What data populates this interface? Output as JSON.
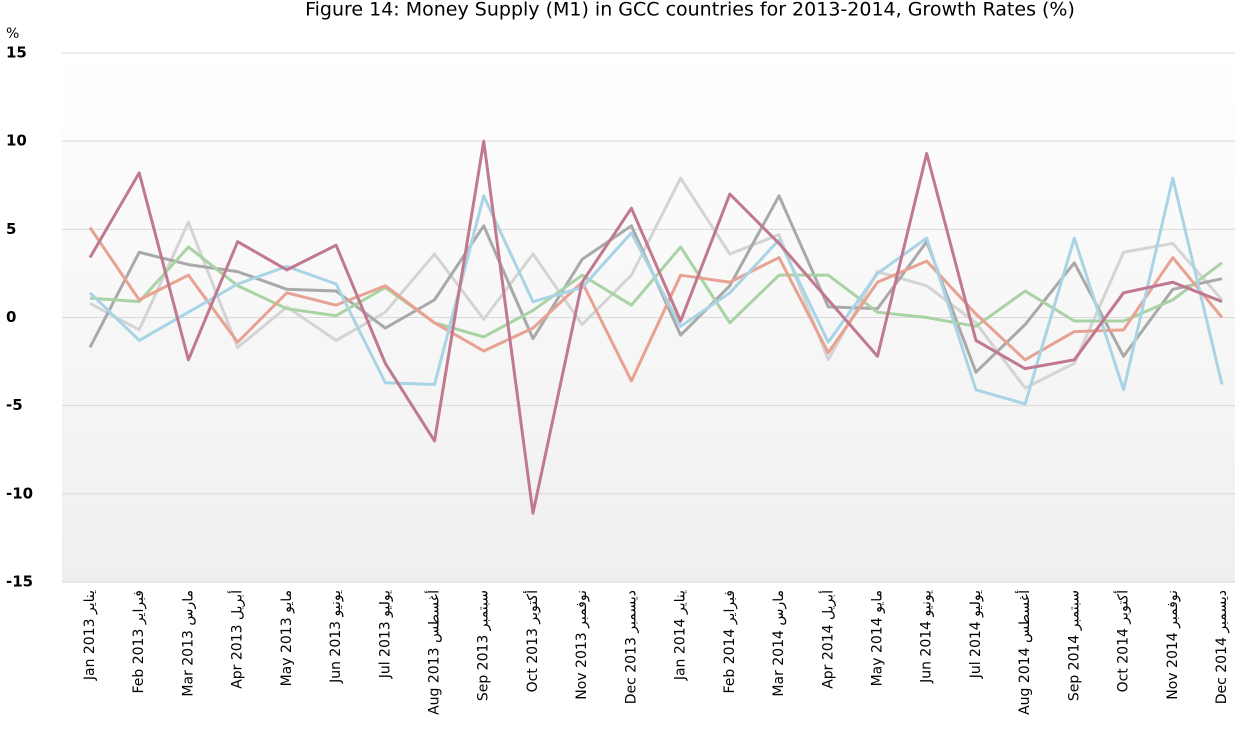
{
  "chart_data": {
    "type": "line",
    "title": "Figure 14: Money Supply (M1) in GCC countries for 2013-2014, Growth Rates (%)",
    "y_label": "%",
    "categories": [
      "Jan 2013  يناير",
      "Feb 2013  فبراير",
      "Mar 2013  مارس",
      "Apr 2013  أبريل",
      "May 2013  مايو",
      "Jun 2013  يونيو",
      "Jul 2013  يوليو",
      "Aug 2013  أغسطس",
      "Sep 2013  سبتمبر",
      "Oct 2013  أكتوبر",
      "Nov 2013  نوفمبر",
      "Dec 2013  ديسمبر",
      "Jan 2014  يناير",
      "Feb 2014  فبراير",
      "Mar 2014  مارس",
      "Apr 2014  أبريل",
      "May 2014  مايو",
      "Jun 2014  يونيو",
      "Jul 2014  يوليو",
      "Aug 2014  أغسطس",
      "Sep 2014  سبتمبر",
      "Oct 2014  أكتوبر",
      "Nov 2014  نوفمبر",
      "Dec 2014  ديسمبر"
    ],
    "series": [
      {
        "color": "#d4d4d4",
        "values": [
          0.8,
          -0.7,
          5.4,
          -1.7,
          0.6,
          -1.3,
          0.3,
          3.6,
          -0.1,
          3.6,
          -0.4,
          2.4,
          7.9,
          3.6,
          4.7,
          -2.4,
          2.6,
          1.8,
          -0.3,
          -4.0,
          -2.6,
          3.7,
          4.2,
          1.0
        ]
      },
      {
        "color": "#a9a9a9",
        "values": [
          -1.7,
          3.7,
          3.0,
          2.6,
          1.6,
          1.5,
          -0.6,
          1.0,
          5.2,
          -1.2,
          3.3,
          5.2,
          -1.0,
          1.8,
          6.9,
          0.6,
          0.5,
          4.3,
          -3.1,
          -0.4,
          3.1,
          -2.2,
          1.6,
          2.2
        ]
      },
      {
        "color": "#a9d3a4",
        "values": [
          1.1,
          0.9,
          4.0,
          1.8,
          0.5,
          0.1,
          1.7,
          -0.3,
          -1.1,
          0.4,
          2.4,
          0.7,
          4.0,
          -0.3,
          2.4,
          2.4,
          0.3,
          0.0,
          -0.5,
          1.5,
          -0.2,
          -0.2,
          1.0,
          3.1
        ]
      },
      {
        "color": "#e8a292",
        "values": [
          5.1,
          1.0,
          2.4,
          -1.4,
          1.4,
          0.7,
          1.8,
          -0.3,
          -1.9,
          -0.6,
          2.0,
          -3.6,
          2.4,
          2.0,
          3.4,
          -2.0,
          2.0,
          3.2,
          0.2,
          -2.4,
          -0.8,
          -0.7,
          3.4,
          0.0
        ]
      },
      {
        "color": "#a9d4e6",
        "values": [
          1.4,
          -1.3,
          0.3,
          1.9,
          2.9,
          1.9,
          -3.7,
          -3.8,
          6.9,
          0.9,
          1.7,
          4.8,
          -0.5,
          1.4,
          4.4,
          -1.4,
          2.5,
          4.5,
          -4.1,
          -4.9,
          4.5,
          -4.1,
          7.9,
          -3.8
        ]
      },
      {
        "color": "#c0798f",
        "values": [
          3.4,
          8.2,
          -2.4,
          4.3,
          2.7,
          4.1,
          -2.6,
          -7.0,
          10.0,
          -11.1,
          2.0,
          6.2,
          -0.2,
          7.0,
          4.2,
          1.0,
          -2.2,
          9.3,
          -1.3,
          -2.9,
          -2.4,
          1.4,
          2.0,
          0.9
        ]
      }
    ],
    "ylim": [
      -15,
      15
    ],
    "yticks": [
      15,
      10,
      5,
      0,
      -5,
      -10,
      -15
    ],
    "grid": true
  }
}
